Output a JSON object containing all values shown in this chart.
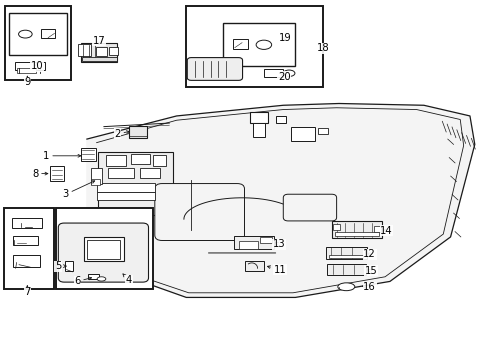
{
  "bg_color": "#ffffff",
  "line_color": "#1a1a1a",
  "fig_width": 4.89,
  "fig_height": 3.6,
  "dpi": 100,
  "roof_outer": {
    "x": [
      0.175,
      0.385,
      0.575,
      0.685,
      0.875,
      0.96,
      0.975,
      0.92,
      0.79,
      0.6,
      0.39,
      0.23,
      0.175
    ],
    "y": [
      0.745,
      0.795,
      0.79,
      0.785,
      0.77,
      0.72,
      0.64,
      0.39,
      0.235,
      0.185,
      0.185,
      0.245,
      0.37
    ]
  },
  "roof_inner": {
    "x": [
      0.2,
      0.395,
      0.575,
      0.68,
      0.86,
      0.94,
      0.95,
      0.905,
      0.78,
      0.595,
      0.39,
      0.245,
      0.2
    ],
    "y": [
      0.73,
      0.775,
      0.77,
      0.765,
      0.752,
      0.705,
      0.635,
      0.405,
      0.255,
      0.205,
      0.205,
      0.258,
      0.375
    ]
  }
}
